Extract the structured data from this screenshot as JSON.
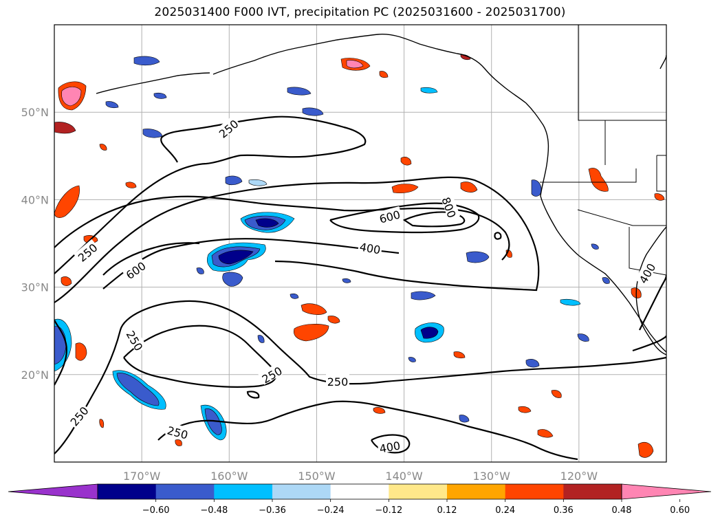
{
  "title": "2025031400 F000 IVT, precipitation PC (2025031600 - 2025031700)",
  "map": {
    "lon_range": [
      -180,
      -110
    ],
    "lat_range": [
      10,
      60
    ],
    "lat_labels": [
      "20°N",
      "30°N",
      "40°N",
      "50°N"
    ],
    "lon_labels": [
      "170°W",
      "160°W",
      "150°W",
      "140°W",
      "130°W",
      "120°W"
    ],
    "contour_labels": [
      "250",
      "250",
      "250",
      "250",
      "250",
      "250",
      "250",
      "400",
      "400",
      "400",
      "600",
      "600",
      "800"
    ],
    "colors": {
      "land_line": "#000000",
      "grid": "#b0b0b0",
      "label": "#888888"
    }
  },
  "colorbar": {
    "ticks": [
      "−0.60",
      "−0.48",
      "−0.36",
      "−0.24",
      "−0.12",
      "0.12",
      "0.24",
      "0.36",
      "0.48",
      "0.60"
    ],
    "colors": [
      "#9932CC",
      "#00008B",
      "#3A5BCC",
      "#00BFFF",
      "#ADD8F6",
      "#FFFFFF",
      "#FFE88A",
      "#FFA500",
      "#FF4500",
      "#B22222",
      "#FF85B3"
    ]
  }
}
